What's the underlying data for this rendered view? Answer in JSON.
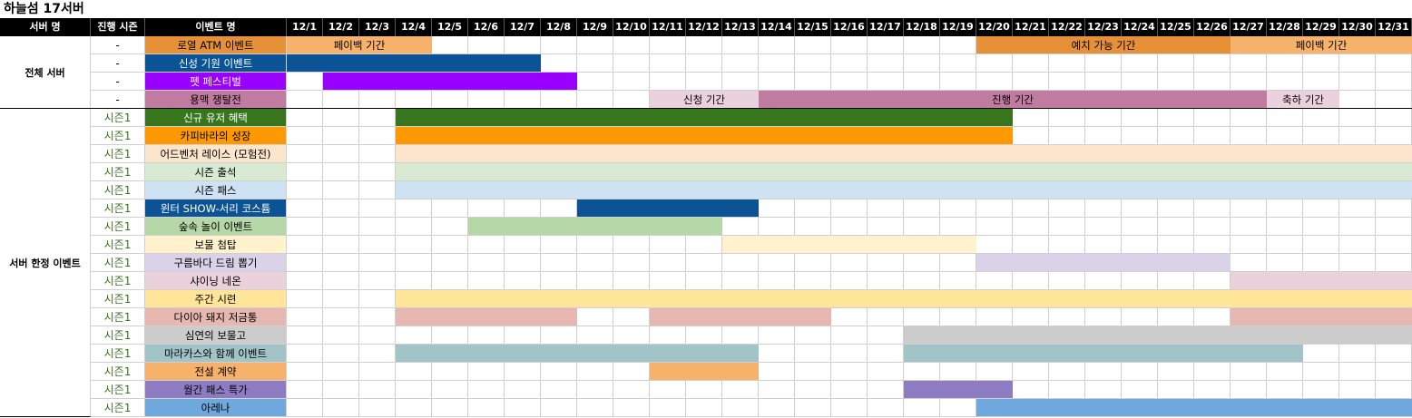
{
  "title": "하늘섬 17서버",
  "headers": {
    "server": "서버 명",
    "season": "진행 시즌",
    "event": "이벤트 명"
  },
  "dates": [
    "12/1",
    "12/2",
    "12/3",
    "12/4",
    "12/5",
    "12/6",
    "12/7",
    "12/8",
    "12/9",
    "12/10",
    "12/11",
    "12/12",
    "12/13",
    "12/14",
    "12/15",
    "12/16",
    "12/17",
    "12/18",
    "12/19",
    "12/20",
    "12/21",
    "12/22",
    "12/23",
    "12/24",
    "12/25",
    "12/26",
    "12/27",
    "12/28",
    "12/29",
    "12/30",
    "12/31"
  ],
  "groups": [
    {
      "label": "전체 서버",
      "start_row": 0,
      "row_count": 4
    },
    {
      "label": "서버 한정 이벤트",
      "start_row": 4,
      "row_count": 17
    }
  ],
  "rows": [
    {
      "season": "-",
      "name": "로열 ATM 이벤트",
      "color": "#e69138",
      "bars": [
        {
          "start": 1,
          "end": 4,
          "color": "#f6b26b",
          "label": "페이백 기간"
        },
        {
          "start": 20,
          "end": 26,
          "color": "#e69138",
          "label": "예치 가능 기간"
        },
        {
          "start": 27,
          "end": 31,
          "color": "#f6b26b",
          "label": "페이백 기간"
        }
      ]
    },
    {
      "season": "-",
      "name": "신성 기원 이벤트",
      "color": "#0b5394",
      "text_color": "#ffffff",
      "bars": [
        {
          "start": 1,
          "end": 7,
          "color": "#0b5394",
          "label": ""
        }
      ]
    },
    {
      "season": "-",
      "name": "펫 페스티벌",
      "color": "#9900ff",
      "text_color": "#ffffff",
      "bars": [
        {
          "start": 2,
          "end": 8,
          "color": "#9900ff",
          "label": ""
        }
      ]
    },
    {
      "season": "-",
      "name": "용맥 쟁탈전",
      "color": "#c27ba0",
      "bars": [
        {
          "start": 11,
          "end": 13,
          "color": "#ead1dc",
          "label": "신청 기간"
        },
        {
          "start": 14,
          "end": 27,
          "color": "#c27ba0",
          "label": "진행 기간"
        },
        {
          "start": 28,
          "end": 29,
          "color": "#ead1dc",
          "label": "축하 기간"
        }
      ]
    },
    {
      "season": "시즌1",
      "name": "신규 유저 혜택",
      "color": "#38761d",
      "text_color": "#ffffff",
      "bars": [
        {
          "start": 4,
          "end": 20,
          "color": "#38761d",
          "label": ""
        }
      ]
    },
    {
      "season": "시즌1",
      "name": "카피바라의 성장",
      "color": "#ff9900",
      "bars": [
        {
          "start": 4,
          "end": 20,
          "color": "#ff9900",
          "label": ""
        }
      ]
    },
    {
      "season": "시즌1",
      "name": "어드벤처 레이스 (모험전)",
      "color": "#fce5cd",
      "bars": [
        {
          "start": 4,
          "end": 31,
          "color": "#fce5cd",
          "label": ""
        }
      ]
    },
    {
      "season": "시즌1",
      "name": "시즌 출석",
      "color": "#d9ead3",
      "bars": [
        {
          "start": 4,
          "end": 31,
          "color": "#d9ead3",
          "label": ""
        }
      ]
    },
    {
      "season": "시즌1",
      "name": "시즌 패스",
      "color": "#cfe2f3",
      "bars": [
        {
          "start": 4,
          "end": 31,
          "color": "#cfe2f3",
          "label": ""
        }
      ]
    },
    {
      "season": "시즌1",
      "name": "윈터 SHOW-서리 코스튬",
      "color": "#0b5394",
      "text_color": "#ffffff",
      "bars": [
        {
          "start": 9,
          "end": 13,
          "color": "#0b5394",
          "label": ""
        }
      ]
    },
    {
      "season": "시즌1",
      "name": "숲속 놀이 이벤트",
      "color": "#b6d7a8",
      "bars": [
        {
          "start": 6,
          "end": 12,
          "color": "#b6d7a8",
          "label": ""
        }
      ]
    },
    {
      "season": "시즌1",
      "name": "보물 첨탑",
      "color": "#fff2cc",
      "bars": [
        {
          "start": 13,
          "end": 19,
          "color": "#fff2cc",
          "label": ""
        }
      ]
    },
    {
      "season": "시즌1",
      "name": "구름바다 드림 뽑기",
      "color": "#d9d2e9",
      "bars": [
        {
          "start": 20,
          "end": 26,
          "color": "#d9d2e9",
          "label": ""
        }
      ]
    },
    {
      "season": "시즌1",
      "name": "샤이닝 네온",
      "color": "#ead1dc",
      "bars": [
        {
          "start": 27,
          "end": 31,
          "color": "#ead1dc",
          "label": ""
        }
      ]
    },
    {
      "season": "시즌1",
      "name": "주간 시련",
      "color": "#ffe599",
      "bars": [
        {
          "start": 4,
          "end": 31,
          "color": "#ffe599",
          "label": ""
        }
      ]
    },
    {
      "season": "시즌1",
      "name": "다이아 돼지 저금통",
      "color": "#e6b8af",
      "bars": [
        {
          "start": 4,
          "end": 8,
          "color": "#e6b8af",
          "label": ""
        },
        {
          "start": 11,
          "end": 15,
          "color": "#e6b8af",
          "label": ""
        },
        {
          "start": 27,
          "end": 31,
          "color": "#e6b8af",
          "label": ""
        }
      ]
    },
    {
      "season": "시즌1",
      "name": "심연의 보물고",
      "color": "#cccccc",
      "bars": [
        {
          "start": 18,
          "end": 31,
          "color": "#cccccc",
          "label": ""
        }
      ]
    },
    {
      "season": "시즌1",
      "name": "마라카스와 함께 이벤트",
      "color": "#a2c4c9",
      "bars": [
        {
          "start": 4,
          "end": 13,
          "color": "#a2c4c9",
          "label": ""
        },
        {
          "start": 18,
          "end": 28,
          "color": "#a2c4c9",
          "label": ""
        }
      ]
    },
    {
      "season": "시즌1",
      "name": "전설 계약",
      "color": "#f6b26b",
      "bars": [
        {
          "start": 11,
          "end": 13,
          "color": "#f6b26b",
          "label": ""
        }
      ]
    },
    {
      "season": "시즌1",
      "name": "월간 패스 특가",
      "color": "#8e7cc3",
      "bars": [
        {
          "start": 18,
          "end": 20,
          "color": "#8e7cc3",
          "label": ""
        }
      ]
    },
    {
      "season": "시즌1",
      "name": "아레나",
      "color": "#6fa8dc",
      "bars": [
        {
          "start": 20,
          "end": 31,
          "color": "#6fa8dc",
          "label": ""
        }
      ]
    }
  ],
  "colors": {
    "header_bg": "#000000",
    "season_text": "#38761d",
    "grid_line": "#d0d0d0"
  }
}
